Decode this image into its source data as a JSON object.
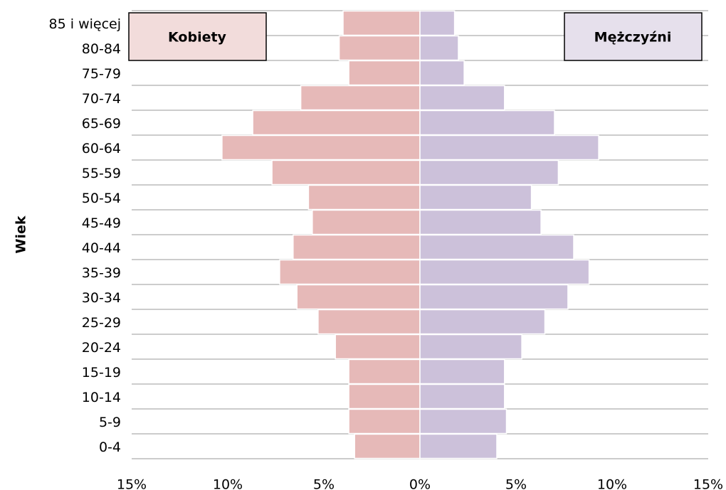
{
  "chart_data": {
    "type": "pyramid",
    "y_label": "Wiek",
    "categories": [
      "85 i więcej",
      "80-84",
      "75-79",
      "70-74",
      "65-69",
      "60-64",
      "55-59",
      "50-54",
      "45-49",
      "40-44",
      "35-39",
      "30-34",
      "25-29",
      "20-24",
      "15-19",
      "10-14",
      "5-9",
      "0-4"
    ],
    "series": [
      {
        "name": "Kobiety",
        "color": "#e6b9b8",
        "side": "left",
        "legend_color": "#f2dcdb",
        "values": [
          4.0,
          4.2,
          3.7,
          6.2,
          8.7,
          10.3,
          7.7,
          5.8,
          5.6,
          6.6,
          7.3,
          6.4,
          5.3,
          4.4,
          3.7,
          3.7,
          3.7,
          3.4
        ]
      },
      {
        "name": "Mężczyźni",
        "color": "#ccc1da",
        "side": "right",
        "legend_color": "#e6e0ec",
        "values": [
          1.8,
          2.0,
          2.3,
          4.4,
          7.0,
          9.3,
          7.2,
          5.8,
          6.3,
          8.0,
          8.8,
          7.7,
          6.5,
          5.3,
          4.4,
          4.4,
          4.5,
          4.0
        ]
      }
    ],
    "xlim": [
      -15,
      15
    ],
    "xticks": [
      {
        "value": -15,
        "label": "15%"
      },
      {
        "value": -10,
        "label": "10%"
      },
      {
        "value": -5,
        "label": "5%"
      },
      {
        "value": 0,
        "label": "0%"
      },
      {
        "value": 5,
        "label": "5%"
      },
      {
        "value": 10,
        "label": "10%"
      },
      {
        "value": 15,
        "label": "15%"
      }
    ],
    "grid": true
  }
}
